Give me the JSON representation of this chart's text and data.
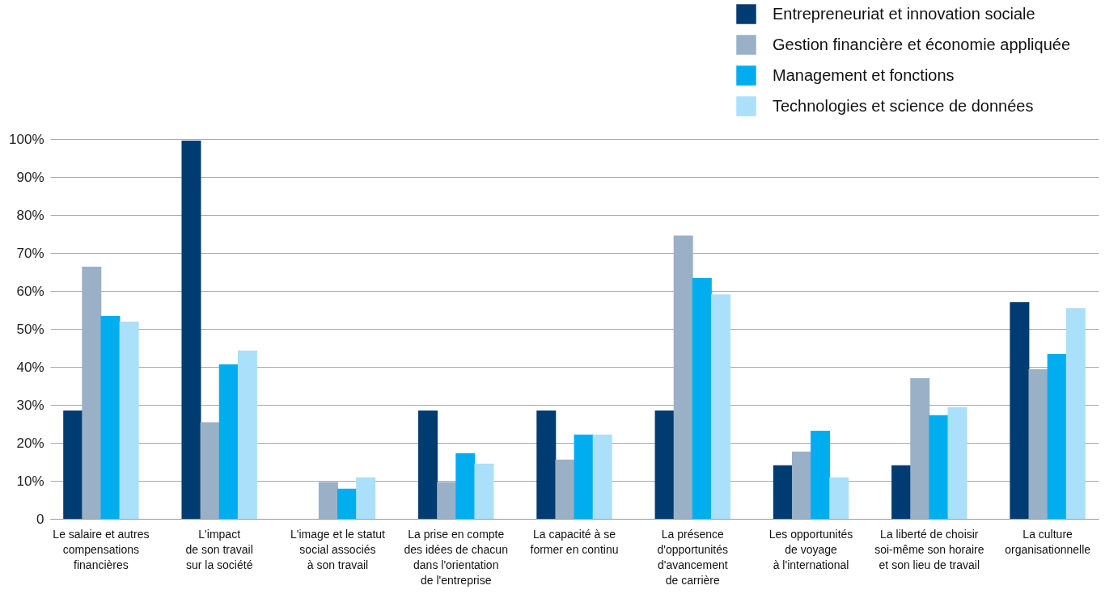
{
  "chart_data": {
    "type": "bar",
    "categories": [
      "Le salaire et autres\ncompensations\nfinancières",
      "L'impact\nde son travail\nsur la société",
      "L'image et le statut\nsocial associés\nà son travail",
      "La prise en compte\ndes idées de chacun\ndans l'orientation\nde l'entreprise",
      "La capacité à se\nformer en continu",
      "La présence\nd'opportunités\nd'avancement\nde carrière",
      "Les opportunités\nde voyage\nà l'international",
      "La liberté de choisir\nsoi-même son horaire\net son lieu de travail",
      "La culture\norganisationnelle"
    ],
    "series": [
      {
        "name": "Entrepreneuriat et innovation sociale",
        "color": "#003b71",
        "values": [
          28.5,
          99.6,
          0,
          28.5,
          28.5,
          28.5,
          14.1,
          14.1,
          57.0
        ]
      },
      {
        "name": "Gestion financière et économie appliquée",
        "color": "#9ab0c7",
        "values": [
          66.4,
          25.4,
          9.7,
          9.7,
          15.6,
          74.6,
          17.7,
          37.0,
          39.4
        ]
      },
      {
        "name": "Management et fonctions",
        "color": "#00aeef",
        "values": [
          53.4,
          40.7,
          7.9,
          17.3,
          22.2,
          63.4,
          23.2,
          27.3,
          43.4
        ]
      },
      {
        "name": "Technologies et science de données",
        "color": "#aae0fa",
        "values": [
          51.9,
          44.3,
          10.9,
          14.5,
          22.2,
          59.1,
          10.9,
          29.4,
          55.5
        ]
      }
    ],
    "ylim": [
      0,
      100
    ],
    "yticks": [
      {
        "value": 0,
        "label": "0"
      },
      {
        "value": 10,
        "label": "10%"
      },
      {
        "value": 20,
        "label": "20%"
      },
      {
        "value": 30,
        "label": "30%"
      },
      {
        "value": 40,
        "label": "40%"
      },
      {
        "value": 50,
        "label": "50%"
      },
      {
        "value": 60,
        "label": "60%"
      },
      {
        "value": 70,
        "label": "70%"
      },
      {
        "value": 80,
        "label": "80%"
      },
      {
        "value": 90,
        "label": "90%"
      },
      {
        "value": 100,
        "label": "100%"
      }
    ],
    "grid": "y",
    "legend": "top right"
  }
}
